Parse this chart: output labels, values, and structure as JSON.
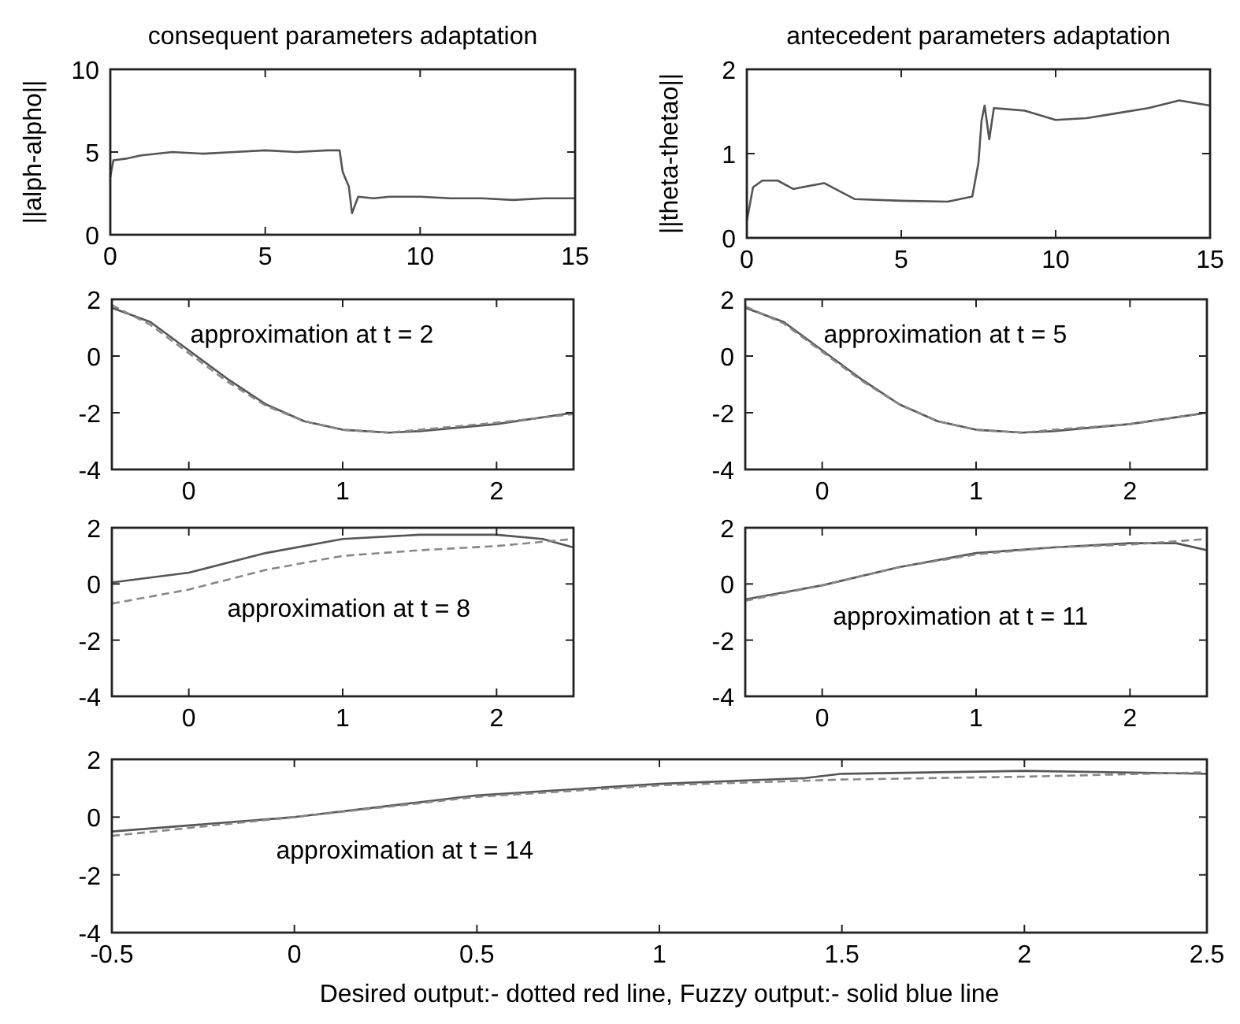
{
  "chart_data": [
    {
      "type": "line",
      "title": "consequent parameters adaptation",
      "ylabel": "||alph-alpho||",
      "xlim": [
        0,
        15
      ],
      "ylim": [
        0,
        10
      ],
      "xticks": [
        0,
        5,
        10,
        15
      ],
      "yticks": [
        0,
        5,
        10
      ],
      "series": [
        {
          "color": "#555555",
          "line_style": "solid",
          "x": [
            0,
            0.1,
            0.5,
            1,
            2,
            3,
            4,
            5,
            6,
            7,
            7.4,
            7.5,
            7.7,
            7.8,
            8,
            8.5,
            9,
            10,
            11,
            12,
            13,
            14,
            15
          ],
          "values": [
            3.5,
            4.5,
            4.6,
            4.8,
            5,
            4.9,
            5,
            5.1,
            5,
            5.1,
            5.1,
            3.8,
            2.9,
            1.3,
            2.3,
            2.2,
            2.3,
            2.3,
            2.2,
            2.2,
            2.1,
            2.2,
            2.2
          ]
        }
      ]
    },
    {
      "type": "line",
      "title": "antecedent parameters adaptation",
      "ylabel": "||theta-thetao||",
      "xlim": [
        0,
        15
      ],
      "ylim": [
        0,
        2
      ],
      "xticks": [
        0,
        5,
        10,
        15
      ],
      "yticks": [
        0,
        1,
        2
      ],
      "series": [
        {
          "color": "#555555",
          "line_style": "solid",
          "x": [
            0,
            0.2,
            0.5,
            1,
            1.5,
            2.5,
            3.5,
            5,
            6.5,
            7.3,
            7.5,
            7.6,
            7.7,
            7.85,
            8,
            9,
            10,
            11,
            12,
            13,
            14,
            15
          ],
          "values": [
            0.2,
            0.6,
            0.68,
            0.68,
            0.58,
            0.65,
            0.46,
            0.44,
            0.43,
            0.49,
            0.89,
            1.39,
            1.57,
            1.17,
            1.54,
            1.51,
            1.4,
            1.42,
            1.48,
            1.54,
            1.63,
            1.57
          ]
        }
      ]
    },
    {
      "type": "line",
      "annotations": [
        "approximation at t = 2"
      ],
      "xlim": [
        -0.5,
        2.5
      ],
      "ylim": [
        -4,
        2
      ],
      "xticks": [
        0,
        1,
        2
      ],
      "yticks": [
        -4,
        -2,
        0,
        2
      ],
      "series": [
        {
          "color": "#555555",
          "line_style": "solid",
          "x": [
            -0.5,
            -0.25,
            0,
            0.25,
            0.5,
            0.75,
            1,
            1.3,
            1.5,
            2,
            2.5
          ],
          "values": [
            1.7,
            1.2,
            0.2,
            -0.8,
            -1.7,
            -2.3,
            -2.6,
            -2.7,
            -2.65,
            -2.4,
            -2
          ]
        },
        {
          "color": "#888888",
          "line_style": "dashed",
          "x": [
            -0.5,
            -0.25,
            0,
            0.25,
            0.5,
            0.75,
            1,
            1.3,
            1.5,
            2,
            2.5
          ],
          "values": [
            1.8,
            1.1,
            0.1,
            -0.9,
            -1.75,
            -2.3,
            -2.6,
            -2.7,
            -2.6,
            -2.35,
            -2.05
          ]
        }
      ]
    },
    {
      "type": "line",
      "annotations": [
        "approximation at t = 5"
      ],
      "xlim": [
        -0.5,
        2.5
      ],
      "ylim": [
        -4,
        2
      ],
      "xticks": [
        0,
        1,
        2
      ],
      "yticks": [
        -4,
        -2,
        0,
        2
      ],
      "series": [
        {
          "color": "#555555",
          "line_style": "solid",
          "x": [
            -0.5,
            -0.25,
            0,
            0.25,
            0.5,
            0.75,
            1,
            1.3,
            1.5,
            2,
            2.5
          ],
          "values": [
            1.7,
            1.2,
            0.2,
            -0.8,
            -1.7,
            -2.3,
            -2.6,
            -2.7,
            -2.65,
            -2.4,
            -2
          ]
        },
        {
          "color": "#888888",
          "line_style": "dashed",
          "x": [
            -0.5,
            -0.25,
            0,
            0.25,
            0.5,
            0.75,
            1,
            1.3,
            1.5,
            2,
            2.5
          ],
          "values": [
            1.75,
            1.15,
            0.15,
            -0.85,
            -1.7,
            -2.3,
            -2.6,
            -2.7,
            -2.6,
            -2.4,
            -2
          ]
        }
      ]
    },
    {
      "type": "line",
      "annotations": [
        "approximation at t = 8"
      ],
      "xlim": [
        -0.5,
        2.5
      ],
      "ylim": [
        -4,
        2
      ],
      "xticks": [
        0,
        1,
        2
      ],
      "yticks": [
        -4,
        -2,
        0,
        2
      ],
      "series": [
        {
          "color": "#555555",
          "line_style": "solid",
          "x": [
            -0.5,
            0,
            0.5,
            1,
            1.5,
            2,
            2.3,
            2.5
          ],
          "values": [
            0.05,
            0.4,
            1.1,
            1.6,
            1.75,
            1.75,
            1.6,
            1.3
          ]
        },
        {
          "color": "#888888",
          "line_style": "dashed",
          "x": [
            -0.5,
            0,
            0.5,
            1,
            1.5,
            2,
            2.5
          ],
          "values": [
            -0.7,
            -0.2,
            0.5,
            1,
            1.2,
            1.35,
            1.6
          ]
        }
      ]
    },
    {
      "type": "line",
      "annotations": [
        "approximation at t = 11"
      ],
      "xlim": [
        -0.5,
        2.5
      ],
      "ylim": [
        -4,
        2
      ],
      "xticks": [
        0,
        1,
        2
      ],
      "yticks": [
        -4,
        -2,
        0,
        2
      ],
      "series": [
        {
          "color": "#555555",
          "line_style": "solid",
          "x": [
            -0.5,
            0,
            0.5,
            1,
            1.5,
            2,
            2.3,
            2.5
          ],
          "values": [
            -0.55,
            -0.05,
            0.6,
            1.1,
            1.3,
            1.45,
            1.45,
            1.2
          ]
        },
        {
          "color": "#888888",
          "line_style": "dashed",
          "x": [
            -0.5,
            0,
            0.5,
            1,
            1.5,
            2,
            2.5
          ],
          "values": [
            -0.6,
            -0.05,
            0.6,
            1.05,
            1.3,
            1.4,
            1.6
          ]
        }
      ]
    },
    {
      "type": "line",
      "annotations": [
        "approximation at t = 14"
      ],
      "xlabel": "Desired output:- dotted red line, Fuzzy output:- solid blue line",
      "xlim": [
        -0.5,
        2.5
      ],
      "ylim": [
        -4,
        2
      ],
      "xticks": [
        -0.5,
        0,
        0.5,
        1,
        1.5,
        2,
        2.5
      ],
      "yticks": [
        -4,
        -2,
        0,
        2
      ],
      "series": [
        {
          "color": "#555555",
          "line_style": "solid",
          "x": [
            -0.5,
            0,
            0.5,
            1,
            1.4,
            1.5,
            2,
            2.5
          ],
          "values": [
            -0.5,
            0,
            0.75,
            1.15,
            1.35,
            1.5,
            1.6,
            1.5
          ]
        },
        {
          "color": "#888888",
          "line_style": "dashed",
          "x": [
            -0.5,
            0,
            0.5,
            1,
            1.5,
            2,
            2.5
          ],
          "values": [
            -0.65,
            0,
            0.7,
            1.1,
            1.3,
            1.4,
            1.55
          ]
        }
      ]
    }
  ]
}
